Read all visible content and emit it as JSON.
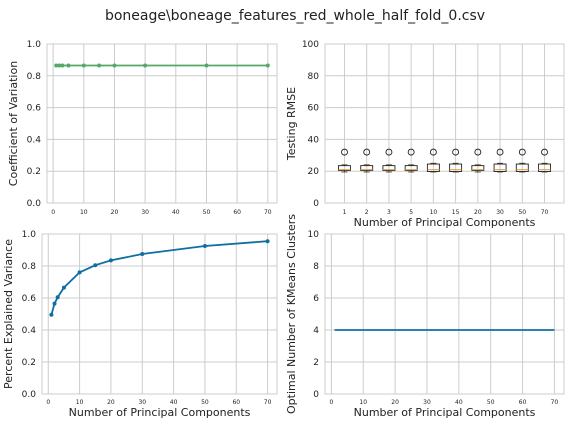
{
  "title": "boneage\\boneage_features_red_whole_half_fold_0.csv",
  "chart_data": [
    {
      "id": "cv",
      "type": "line",
      "xlabel": "",
      "ylabel": "Coefficient of Variation",
      "xlim": [
        -2,
        73
      ],
      "ylim": [
        0,
        1
      ],
      "xticks": [
        0,
        10,
        20,
        30,
        40,
        50,
        60,
        70
      ],
      "yticks": [
        0.0,
        0.2,
        0.4,
        0.6,
        0.8,
        1.0
      ],
      "grid": true,
      "color": "#55a868",
      "x": [
        1,
        2,
        3,
        5,
        10,
        15,
        20,
        30,
        50,
        70
      ],
      "y": [
        0.865,
        0.865,
        0.865,
        0.865,
        0.865,
        0.865,
        0.865,
        0.865,
        0.865,
        0.865
      ]
    },
    {
      "id": "rmse",
      "type": "box",
      "xlabel": "Number of Principal Components",
      "ylabel": "Testing RMSE",
      "ylim": [
        0,
        100
      ],
      "yticks": [
        0,
        20,
        40,
        60,
        80,
        100
      ],
      "grid": true,
      "categories": [
        "1",
        "2",
        "3",
        "5",
        "10",
        "15",
        "20",
        "30",
        "50",
        "70"
      ],
      "boxes": [
        {
          "whislo": 19.5,
          "q1": 20.5,
          "med": 21.0,
          "q3": 23.5,
          "whishi": 24.0,
          "flier": 32
        },
        {
          "whislo": 19.5,
          "q1": 20.5,
          "med": 21.0,
          "q3": 23.5,
          "whishi": 24.0,
          "flier": 32
        },
        {
          "whislo": 19.5,
          "q1": 20.5,
          "med": 21.0,
          "q3": 23.5,
          "whishi": 24.0,
          "flier": 32
        },
        {
          "whislo": 19.5,
          "q1": 20.5,
          "med": 21.0,
          "q3": 23.5,
          "whishi": 24.0,
          "flier": 32
        },
        {
          "whislo": 19.5,
          "q1": 19.8,
          "med": 21.0,
          "q3": 24.5,
          "whishi": 25.0,
          "flier": 32
        },
        {
          "whislo": 19.5,
          "q1": 19.8,
          "med": 21.0,
          "q3": 24.5,
          "whishi": 25.0,
          "flier": 32
        },
        {
          "whislo": 19.5,
          "q1": 20.5,
          "med": 21.0,
          "q3": 23.5,
          "whishi": 24.0,
          "flier": 32
        },
        {
          "whislo": 19.5,
          "q1": 19.8,
          "med": 21.0,
          "q3": 24.5,
          "whishi": 25.0,
          "flier": 32
        },
        {
          "whislo": 19.5,
          "q1": 19.8,
          "med": 21.0,
          "q3": 24.5,
          "whishi": 25.0,
          "flier": 32
        },
        {
          "whislo": 19.5,
          "q1": 19.8,
          "med": 21.0,
          "q3": 24.5,
          "whishi": 25.0,
          "flier": 32
        }
      ]
    },
    {
      "id": "pev",
      "type": "line",
      "xlabel": "Number of Principal Components",
      "ylabel": "Percent Explained Variance",
      "xlim": [
        -2,
        73
      ],
      "ylim": [
        0,
        1
      ],
      "xticks": [
        0,
        10,
        20,
        30,
        40,
        50,
        60,
        70
      ],
      "yticks": [
        0.0,
        0.2,
        0.4,
        0.6,
        0.8,
        1.0
      ],
      "grid": true,
      "color": "#0f6fa0",
      "x": [
        1,
        2,
        3,
        5,
        10,
        15,
        20,
        30,
        50,
        70
      ],
      "y": [
        0.495,
        0.565,
        0.605,
        0.665,
        0.76,
        0.805,
        0.835,
        0.875,
        0.925,
        0.955
      ]
    },
    {
      "id": "kmeans",
      "type": "line",
      "xlabel": "Number of Principal Components",
      "ylabel": "Optimal Number of KMeans Clusters",
      "xlim": [
        -2,
        73
      ],
      "ylim": [
        0,
        10
      ],
      "xticks": [
        0,
        10,
        20,
        30,
        40,
        50,
        60,
        70
      ],
      "yticks": [
        0,
        2,
        4,
        6,
        8,
        10
      ],
      "grid": true,
      "color": "#0f6fa0",
      "x": [
        1,
        2,
        3,
        5,
        10,
        15,
        20,
        30,
        50,
        70
      ],
      "y": [
        4,
        4,
        4,
        4,
        4,
        4,
        4,
        4,
        4,
        4
      ]
    }
  ]
}
